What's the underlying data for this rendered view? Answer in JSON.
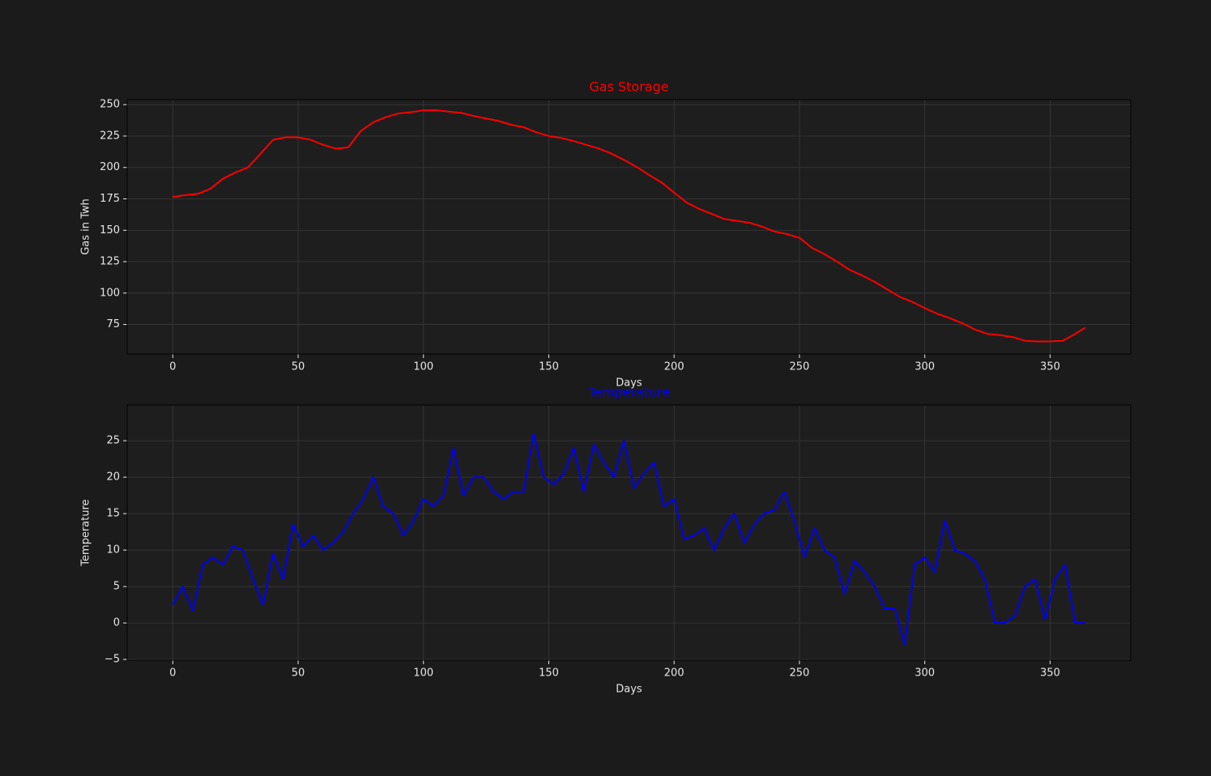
{
  "chart_data": [
    {
      "type": "line",
      "title": "Gas Storage",
      "title_color": "#ff0000",
      "x_label": "Days",
      "y_label": "Gas in Twh",
      "x": [
        0,
        5,
        10,
        15,
        20,
        25,
        30,
        35,
        40,
        45,
        50,
        55,
        60,
        65,
        70,
        75,
        80,
        85,
        90,
        95,
        100,
        105,
        110,
        115,
        120,
        125,
        130,
        135,
        140,
        145,
        150,
        155,
        160,
        165,
        170,
        175,
        180,
        185,
        190,
        195,
        200,
        205,
        210,
        215,
        220,
        225,
        230,
        235,
        240,
        245,
        250,
        255,
        260,
        265,
        270,
        275,
        280,
        285,
        290,
        295,
        300,
        305,
        310,
        315,
        320,
        325,
        330,
        335,
        340,
        345,
        350,
        355,
        360,
        364
      ],
      "values": [
        176.5,
        178,
        179,
        183,
        191,
        196,
        200,
        211,
        222,
        224,
        224,
        222,
        218,
        215,
        216,
        229,
        236,
        240,
        243,
        244,
        245.5,
        245.5,
        244.5,
        243.5,
        241,
        239,
        237,
        234,
        232,
        228,
        225,
        223.5,
        221,
        218,
        215,
        211,
        206,
        200.5,
        194,
        188,
        180,
        172,
        167,
        163,
        159,
        157.5,
        156,
        153,
        149,
        147,
        144,
        136,
        131,
        125,
        118.5,
        114,
        109,
        103,
        97,
        93,
        88,
        83.5,
        80,
        76,
        71,
        67.5,
        66.5,
        65,
        62,
        61.5,
        61.5,
        62,
        67.5,
        72.5
      ],
      "color": "#ff0000",
      "xlim": [
        -18.2,
        382.2
      ],
      "xticks": [
        0,
        50,
        100,
        150,
        200,
        250,
        300,
        350
      ],
      "ylim": [
        51.5,
        254
      ],
      "yticks": [
        75,
        100,
        125,
        150,
        175,
        200,
        225,
        250
      ],
      "grid": true
    },
    {
      "type": "line",
      "title": "Temperature",
      "title_color": "#0000ff",
      "x_label": "Days",
      "y_label": "Temperature",
      "x": [
        0,
        4,
        8,
        12,
        16,
        20,
        24,
        28,
        32,
        36,
        40,
        44,
        48,
        52,
        56,
        60,
        64,
        68,
        72,
        76,
        80,
        84,
        88,
        92,
        96,
        100,
        104,
        108,
        112,
        116,
        120,
        124,
        128,
        132,
        136,
        140,
        144,
        148,
        152,
        156,
        160,
        164,
        168,
        172,
        176,
        180,
        184,
        188,
        192,
        196,
        200,
        204,
        208,
        212,
        216,
        220,
        224,
        228,
        232,
        236,
        240,
        244,
        248,
        252,
        256,
        260,
        264,
        268,
        272,
        276,
        280,
        284,
        288,
        292,
        296,
        300,
        304,
        308,
        312,
        316,
        320,
        324,
        328,
        332,
        336,
        340,
        344,
        348,
        352,
        356,
        360,
        364
      ],
      "values": [
        2.5,
        5,
        1.7,
        8,
        9,
        8,
        10.5,
        10,
        6,
        2.5,
        9.5,
        6,
        13.5,
        10.5,
        12,
        10,
        11,
        12.5,
        15,
        17,
        20,
        16,
        15,
        12,
        14,
        17,
        16,
        17.5,
        24,
        17.5,
        20,
        20,
        18,
        17,
        18,
        18,
        26,
        20,
        19,
        20.5,
        24,
        18,
        24.5,
        22,
        20,
        25,
        18.5,
        20.5,
        22,
        16,
        17,
        11.5,
        12,
        13,
        10,
        13,
        15,
        11,
        13.5,
        15,
        15.5,
        18,
        14,
        9,
        13,
        10,
        9,
        4,
        8.5,
        7,
        5,
        2,
        2,
        -3,
        8,
        9,
        7,
        14,
        10,
        9.5,
        8.5,
        6,
        0,
        0,
        1,
        5,
        6,
        0.5,
        6,
        8,
        0,
        0
      ],
      "color": "#0000ff",
      "xlim": [
        -18.2,
        382.2
      ],
      "xticks": [
        0,
        50,
        100,
        150,
        200,
        250,
        300,
        350
      ],
      "ylim": [
        -5.1,
        29.9
      ],
      "yticks": [
        {
          "value": -5,
          "label": "−5"
        },
        0,
        5,
        10,
        15,
        20,
        25
      ],
      "grid": true
    }
  ]
}
